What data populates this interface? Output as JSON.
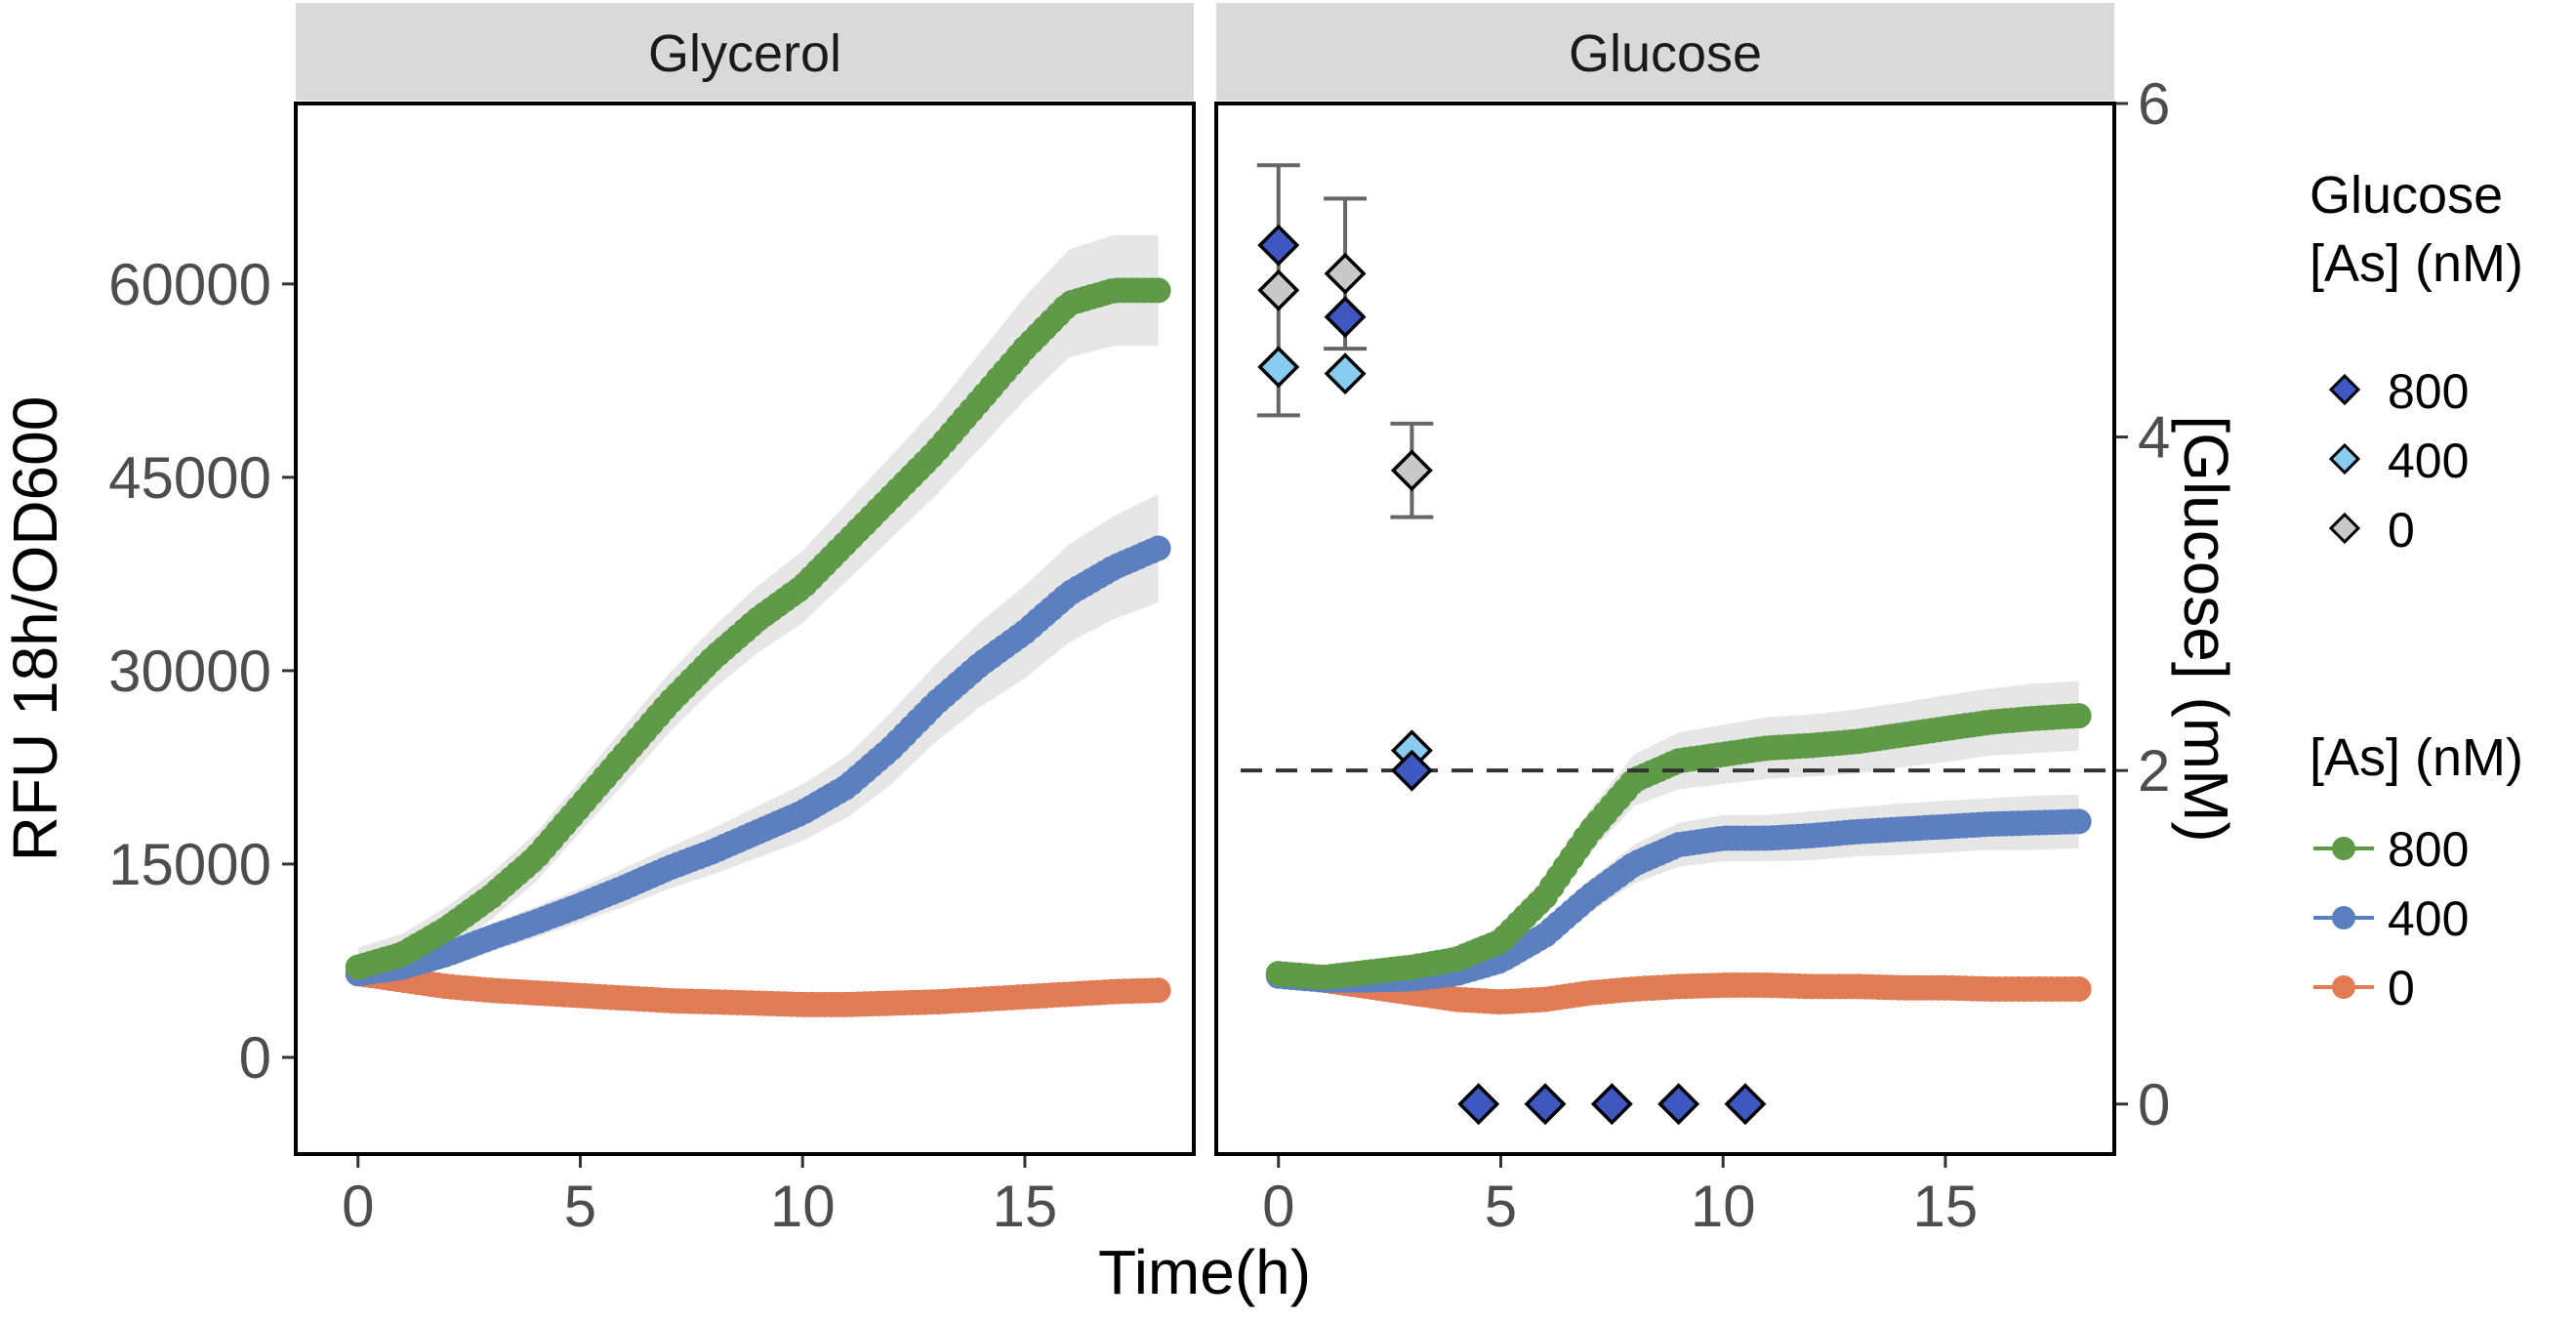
{
  "chart_data": {
    "type": "scatter",
    "panels": [
      "Glycerol",
      "Glucose"
    ],
    "xlabel": "Time(h)",
    "ylabel": "RFU 18h/OD600",
    "y2label": "[Glucose] (mM)",
    "xlim": [
      -1.4,
      18.8
    ],
    "ylim": [
      -7500,
      74000
    ],
    "y2lim": [
      -0.3,
      6.0
    ],
    "x_ticks": [
      0,
      5,
      10,
      15
    ],
    "y_ticks": [
      0,
      15000,
      30000,
      45000,
      60000
    ],
    "y2_ticks": [
      0,
      2,
      4,
      6
    ],
    "x_tick_labels": [
      "0",
      "5",
      "10",
      "15"
    ],
    "y_tick_labels": [
      "0",
      "15000",
      "30000",
      "45000",
      "60000"
    ],
    "y2_tick_labels": [
      "0",
      "2",
      "4",
      "6"
    ],
    "threshold_line": {
      "y2": 2.0,
      "style": "dashed"
    },
    "fluorescence_legend_title": "[As] (nM)",
    "glucose_legend_title_line1": "Glucose",
    "glucose_legend_title_line2": "[As] (nM)",
    "fluorescence_series": [
      {
        "name": "800",
        "color": "#5e9a47",
        "glycerol": {
          "x": [
            0,
            1,
            2,
            3,
            4,
            5,
            6,
            7,
            8,
            9,
            10,
            11,
            12,
            13,
            14,
            15,
            16,
            17,
            18
          ],
          "y": [
            7000,
            8000,
            10000,
            12500,
            15500,
            19500,
            23500,
            27500,
            31000,
            34000,
            36500,
            40000,
            43500,
            47000,
            51000,
            55000,
            58500,
            59500,
            59500
          ],
          "band": [
            1500,
            1600,
            1700,
            1800,
            1900,
            2000,
            2200,
            2300,
            2400,
            2600,
            2800,
            3000,
            3200,
            3400,
            3700,
            4000,
            4200,
            4300,
            4300
          ]
        },
        "glucose": {
          "x": [
            0,
            1,
            2,
            3,
            4,
            5,
            6,
            7,
            8,
            9,
            10,
            11,
            12,
            13,
            14,
            15,
            16,
            17,
            18
          ],
          "y": [
            6500,
            6200,
            6600,
            7000,
            7600,
            9000,
            12500,
            17500,
            21500,
            23000,
            23500,
            24000,
            24200,
            24500,
            25000,
            25500,
            26000,
            26300,
            26500
          ],
          "band": [
            500,
            500,
            600,
            700,
            800,
            1000,
            1300,
            1700,
            2000,
            2200,
            2300,
            2400,
            2400,
            2500,
            2500,
            2600,
            2600,
            2700,
            2700
          ]
        }
      },
      {
        "name": "400",
        "color": "#5b7fbf",
        "glycerol": {
          "x": [
            0,
            1,
            2,
            3,
            4,
            5,
            6,
            7,
            8,
            9,
            10,
            11,
            12,
            13,
            14,
            15,
            16,
            17,
            18
          ],
          "y": [
            6500,
            7000,
            8000,
            9300,
            10500,
            11800,
            13200,
            14700,
            16000,
            17500,
            19000,
            21000,
            24000,
            27500,
            30500,
            33000,
            36000,
            38000,
            39500
          ],
          "band": [
            800,
            900,
            1000,
            1100,
            1200,
            1300,
            1500,
            1600,
            1800,
            2000,
            2200,
            2400,
            2800,
            3000,
            3300,
            3600,
            3800,
            4000,
            4200
          ]
        },
        "glucose": {
          "x": [
            0,
            1,
            2,
            3,
            4,
            5,
            6,
            7,
            8,
            9,
            10,
            11,
            12,
            13,
            14,
            15,
            16,
            17,
            18
          ],
          "y": [
            6300,
            6000,
            6000,
            6100,
            6500,
            7500,
            9500,
            12500,
            15000,
            16500,
            17000,
            17000,
            17200,
            17500,
            17700,
            17900,
            18100,
            18200,
            18300
          ],
          "band": [
            400,
            400,
            500,
            600,
            700,
            800,
            1000,
            1300,
            1500,
            1700,
            1800,
            1800,
            1900,
            1900,
            2000,
            2000,
            2000,
            2100,
            2100
          ]
        }
      },
      {
        "name": "0",
        "color": "#e07b54",
        "glycerol": {
          "x": [
            0,
            1,
            2,
            3,
            4,
            5,
            6,
            7,
            8,
            9,
            10,
            11,
            12,
            13,
            14,
            15,
            16,
            17,
            18
          ],
          "y": [
            6500,
            6000,
            5500,
            5200,
            5000,
            4800,
            4600,
            4400,
            4300,
            4200,
            4100,
            4100,
            4200,
            4300,
            4500,
            4700,
            4900,
            5100,
            5200
          ],
          "band": [
            300,
            300,
            300,
            300,
            300,
            300,
            300,
            300,
            300,
            300,
            300,
            300,
            300,
            300,
            300,
            300,
            300,
            300,
            300
          ]
        },
        "glucose": {
          "x": [
            0,
            1,
            2,
            3,
            4,
            5,
            6,
            7,
            8,
            9,
            10,
            11,
            12,
            13,
            14,
            15,
            16,
            17,
            18
          ],
          "y": [
            6500,
            6000,
            5500,
            5000,
            4500,
            4300,
            4500,
            5000,
            5300,
            5500,
            5600,
            5600,
            5500,
            5500,
            5400,
            5400,
            5300,
            5300,
            5300
          ],
          "band": [
            300,
            300,
            300,
            300,
            300,
            300,
            300,
            300,
            300,
            300,
            300,
            300,
            300,
            300,
            300,
            300,
            300,
            300,
            300
          ]
        }
      }
    ],
    "glucose_measurements": [
      {
        "name": "800",
        "color": "#3f57c0",
        "x": [
          0,
          1.5,
          3,
          4.5,
          6,
          7.5,
          9,
          10.5
        ],
        "y": [
          5.15,
          4.72,
          2.0,
          0,
          0,
          0,
          0,
          0
        ]
      },
      {
        "name": "400",
        "color": "#88ccf2",
        "x": [
          0,
          1.5,
          3
        ],
        "y": [
          4.42,
          4.38,
          2.12
        ]
      },
      {
        "name": "0",
        "color": "#c8c8c8",
        "x": [
          0,
          1.5,
          3
        ],
        "y": [
          4.88,
          4.98,
          3.8
        ],
        "err": [
          0.75,
          0.45,
          0.28
        ]
      }
    ]
  }
}
